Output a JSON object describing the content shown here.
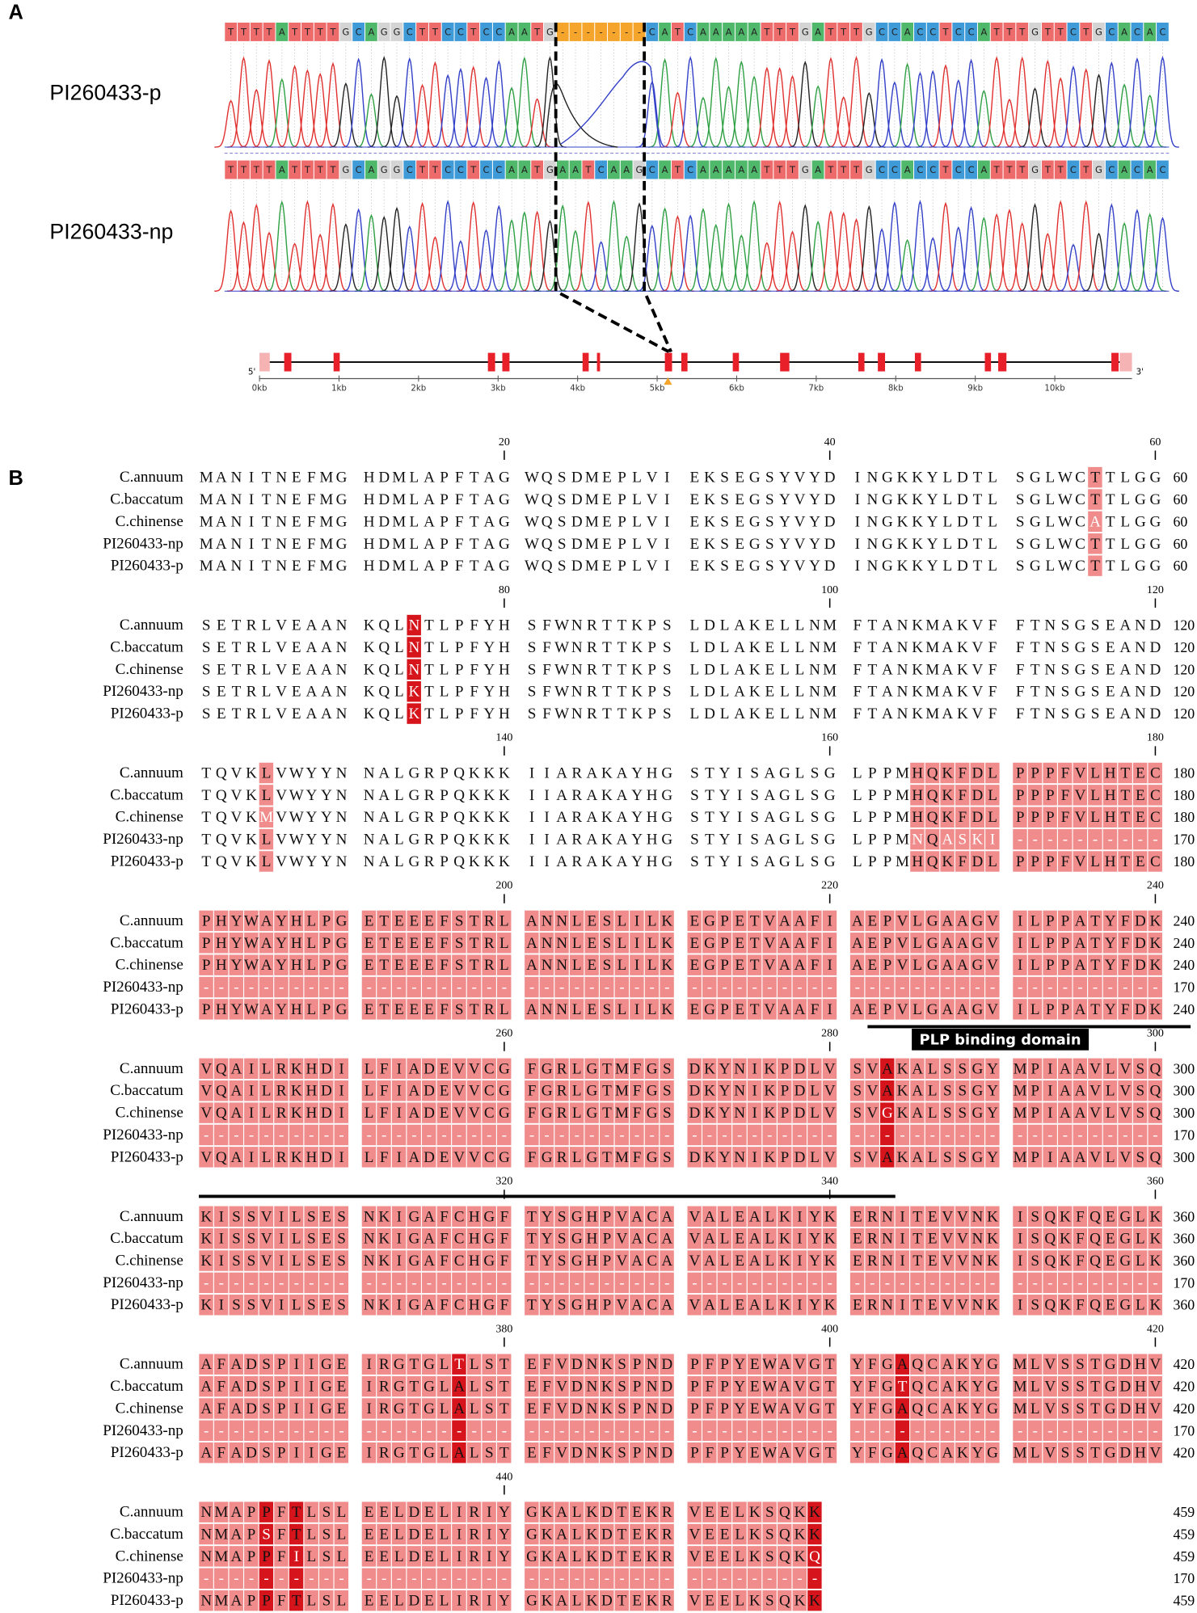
{
  "panel_a": {
    "label": "A",
    "samples": [
      "PI260433-p",
      "PI260433-np"
    ],
    "sequences": [
      "TTTTATTTTGCAGGCTTCCTCCAATG-------CATCAAAAATTTGATTTGCCACCTCCATTTGTTCTGCACAC",
      "TTTTATTTTGCAGGCTTCCTCCAATGAATCAAGCATCAAAAATTTGATTTGCCACCTCCATTTGTTCTGCACAC"
    ],
    "gene_axis": {
      "ticks": [
        "0kb",
        "1kb",
        "2kb",
        "3kb",
        "4kb",
        "5kb",
        "6kb",
        "7kb",
        "8kb",
        "9kb",
        "10kb"
      ],
      "five_prime": "5'",
      "three_prime": "3'"
    }
  },
  "panel_b": {
    "label": "B",
    "names": [
      "C.annuum",
      "C.baccatum",
      "C.chinense",
      "PI260433-np",
      "PI260433-p"
    ],
    "sequences": [
      [
        "MANITNEFMG",
        "HDMLAPFTAG",
        "WQSDMEPLVI",
        "EKSEGSYVYD",
        "INGKKYLDTL",
        "SGLWCTTLGG",
        "SETRLVEAAN",
        "KQLNTLPFYH",
        "SFWNRTTKPS",
        "LDLAKELLNM",
        "FTANKMAKVF",
        "FTNSGSEAND",
        "TQVKLVWYYN",
        "NALGRPQKKK",
        "IIARAKAYHG",
        "STYISAGLSG",
        "LPPMHQKFDL",
        "PPPFVLHTEC",
        "PHYWAYHLPG",
        "ETEEEFSTRL",
        "ANNLESLILK",
        "EGPETVAAFI",
        "AEPVLGAAGV",
        "ILPPATYFDK",
        "VQAILRKHDI",
        "LFIADEVVCG",
        "FGRLGTMFGS",
        "DKYNIKPDLV",
        "SVAKALSSGY",
        "MPIAAVLVSQ",
        "KISSVILSES",
        "NKIGAFCHGF",
        "TYSGHPVACA",
        "VALEALKIYK",
        "ERNITEVVNK",
        "ISQKFQEGLK",
        "AFADSPIIGE",
        "IRGTGLTLST",
        "EFVDNKSPND",
        "PFPYEWAVGT",
        "YFGAQCAKYG",
        "MLVSSTGDHV",
        "NMAPPFTLSL",
        "EELDELIRIY",
        "GKALKDTEKR",
        "VEELKSQKK"
      ],
      [
        "MANITNEFMG",
        "HDMLAPFTAG",
        "WQSDMEPLVI",
        "EKSEGSYVYD",
        "INGKKYLDTL",
        "SGLWCTTLGG",
        "SETRLVEAAN",
        "KQLNTLPFYH",
        "SFWNRTTKPS",
        "LDLAKELLNM",
        "FTANKMAKVF",
        "FTNSGSEAND",
        "TQVKLVWYYN",
        "NALGRPQKKK",
        "IIARAKAYHG",
        "STYISAGLSG",
        "LPPMHQKFDL",
        "PPPFVLHTEC",
        "PHYWAYHLPG",
        "ETEEEFSTRL",
        "ANNLESLILK",
        "EGPETVAAFI",
        "AEPVLGAAGV",
        "ILPPATYFDK",
        "VQAILRKHDI",
        "LFIADEVVCG",
        "FGRLGTMFGS",
        "DKYNIKPDLV",
        "SVAKALSSGY",
        "MPIAAVLVSQ",
        "KISSVILSES",
        "NKIGAFCHGF",
        "TYSGHPVACA",
        "VALEALKIYK",
        "ERNITEVVNK",
        "ISQKFQEGLK",
        "AFADSPIIGE",
        "IRGTGLALST",
        "EFVDNKSPND",
        "PFPYEWAVGT",
        "YFGTQCAKYG",
        "MLVSSTGDHV",
        "NMAPSFTLSL",
        "EELDELIRIY",
        "GKALKDTEKR",
        "VEELKSQKK"
      ],
      [
        "MANITNEFMG",
        "HDMLAPFTAG",
        "WQSDMEPLVI",
        "EKSEGSYVYD",
        "INGKKYLDTL",
        "SGLWCATLGG",
        "SETRLVEAAN",
        "KQLNTLPFYH",
        "SFWNRTTKPS",
        "LDLAKELLNM",
        "FTANKMAKVF",
        "FTNSGSEAND",
        "TQVKMVWYYN",
        "NALGRPQKKK",
        "IIARAKAYHG",
        "STYISAGLSG",
        "LPPMHQKFDL",
        "PPPFVLHTEC",
        "PHYWAYHLPG",
        "ETEEEFSTRL",
        "ANNLESLILK",
        "EGPETVAAFI",
        "AEPVLGAAGV",
        "ILPPATYFDK",
        "VQAILRKHDI",
        "LFIADEVVCG",
        "FGRLGTMFGS",
        "DKYNIKPDLV",
        "SVGKALSSGY",
        "MPIAAVLVSQ",
        "KISSVILSES",
        "NKIGAFCHGF",
        "TYSGHPVACA",
        "VALEALKIYK",
        "ERNITEVVNK",
        "ISQKFQEGLK",
        "AFADSPIIGE",
        "IRGTGLALST",
        "EFVDNKSPND",
        "PFPYEWAVGT",
        "YFGAQCAKYG",
        "MLVSSTGDHV",
        "NMAPPFILSL",
        "EELDELIRIY",
        "GKALKDTEKR",
        "VEELKSQKQ"
      ],
      [
        "MANITNEFMG",
        "HDMLAPFTAG",
        "WQSDMEPLVI",
        "EKSEGSYVYD",
        "INGKKYLDTL",
        "SGLWCTTLGG",
        "SETRLVEAAN",
        "KQLKTLPFYH",
        "SFWNRTTKPS",
        "LDLAKELLNM",
        "FTANKMAKVF",
        "FTNSGSEAND",
        "TQVKLVWYYN",
        "NALGRPQKKK",
        "IIARAKAYHG",
        "STYISAGLSG",
        "LPPMNQASKI",
        "----------",
        "----------",
        "----------",
        "----------",
        "----------",
        "----------",
        "----------",
        "----------",
        "----------",
        "----------",
        "----------",
        "----------",
        "----------",
        "----------",
        "----------",
        "----------",
        "----------",
        "----------",
        "----------",
        "----------",
        "----------",
        "----------",
        "----------",
        "----------",
        "----------",
        "----------",
        "----------",
        "----------",
        "---------"
      ],
      [
        "MANITNEFMG",
        "HDMLAPFTAG",
        "WQSDMEPLVI",
        "EKSEGSYVYD",
        "INGKKYLDTL",
        "SGLWCTTLGG",
        "SETRLVEAAN",
        "KQLKTLPFYH",
        "SFWNRTTKPS",
        "LDLAKELLNM",
        "FTANKMAKVF",
        "FTNSGSEAND",
        "TQVKLVWYYN",
        "NALGRPQKKK",
        "IIARAKAYHG",
        "STYISAGLSG",
        "LPPMHQKFDL",
        "PPPFVLHTEC",
        "PHYWAYHLPG",
        "ETEEEFSTRL",
        "ANNLESLILK",
        "EGPETVAAFI",
        "AEPVLGAAGV",
        "ILPPATYFDK",
        "VQAILRKHDI",
        "LFIADEVVCG",
        "FGRLGTMFGS",
        "DKYNIKPDLV",
        "SVAKALSSGY",
        "MPIAAVLVSQ",
        "KISSVILSES",
        "NKIGAFCHGF",
        "TYSGHPVACA",
        "VALEALKIYK",
        "ERNITEVVNK",
        "ISQKFQEGLK",
        "AFADSPIIGE",
        "IRGTGLALST",
        "EFVDNKSPND",
        "PFPYEWAVGT",
        "YFGAQCAKYG",
        "MLVSSTGDHV",
        "NMAPPFTLSL",
        "EELDELIRIY",
        "GKALKDTEKR",
        "VEELKSQKK"
      ]
    ],
    "ruler": [
      20,
      40,
      60,
      80,
      100,
      120,
      140,
      160,
      180,
      200,
      220,
      240,
      260,
      280,
      300,
      320,
      340,
      360,
      380,
      400,
      420,
      440
    ],
    "ends": [
      [
        60,
        60,
        60,
        60,
        60
      ],
      [
        120,
        120,
        120,
        120,
        120
      ],
      [
        180,
        180,
        180,
        170,
        180
      ],
      [
        240,
        240,
        240,
        170,
        240
      ],
      [
        300,
        300,
        300,
        170,
        300
      ],
      [
        360,
        360,
        360,
        170,
        360
      ],
      [
        420,
        420,
        420,
        170,
        420
      ],
      [
        459,
        459,
        459,
        170,
        459
      ]
    ],
    "domain": "PLP binding domain"
  }
}
